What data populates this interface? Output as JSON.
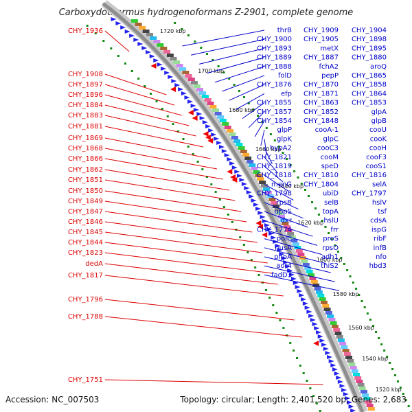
{
  "title": "Carboxydothermus hydrogenoformans Z-2901, complete genome",
  "footer": {
    "accession": "Accession: NC_007503",
    "summary": "Topology: circular; Length: 2,401,520 bp; Genes: 2,683"
  },
  "colors": {
    "left_label": "#dd0000",
    "right_label": "#0000cc",
    "feature_arrow": "#2222ee",
    "backbone": "#9a9a9a",
    "gc_dots": "#118811",
    "tick_marker": "#ee0000"
  },
  "ruler": [
    "1720 kbp",
    "1700 kbp",
    "1680 kbp",
    "1660 kbp",
    "1640 kbp",
    "1620 kbp",
    "1600 kbp",
    "1580 kbp",
    "1560 kbp",
    "1540 kbp",
    "1520 kbp"
  ],
  "left_labels": [
    "CHY_1936",
    "CHY_1908",
    "CHY_1897",
    "CHY_1896",
    "CHY_1884",
    "CHY_1883",
    "CHY_1881",
    "CHY_1869",
    "CHY_1868",
    "CHY_1866",
    "CHY_1862",
    "CHY_1851",
    "CHY_1850",
    "CHY_1849",
    "CHY_1847",
    "CHY_1846",
    "CHY_1845",
    "CHY_1844",
    "CHY_1823",
    "dedA",
    "CHY_1817",
    "CHY_1796",
    "CHY_1788",
    "CHY_1751"
  ],
  "right_labels": [
    "thrB",
    "CHY_1909",
    "CHY_1904",
    "CHY_1900",
    "CHY_1905",
    "CHY_1898",
    "CHY_1893",
    "metX",
    "CHY_1895",
    "CHY_1889",
    "CHY_1887",
    "CHY_1880",
    "CHY_1888",
    "fchA2",
    "aroQ",
    "folD",
    "pepP",
    "CHY_1865",
    "CHY_1876",
    "CHY_1870",
    "CHY_1858",
    "efp",
    "CHY_1871",
    "CHY_1864",
    "CHY_1855",
    "CHY_1863",
    "CHY_1853",
    "CHY_1857",
    "CHY_1852",
    "glpA",
    "CHY_1854",
    "CHY_1848",
    "glpB",
    "glpP",
    "cooA-1",
    "cooU",
    "glpK",
    "glpC",
    "cooK",
    "hypA2",
    "cooC3",
    "cooH",
    "CHY_1821",
    "cooM",
    "cooF3",
    "CHY_1819",
    "speD",
    "cooS1",
    "CHY_1818",
    "CHY_1810",
    "CHY_1816",
    "menG",
    "CHY_1804",
    "selA",
    "CHY_1798",
    "ubiD",
    "CHY_1797",
    "rpsB",
    "selB",
    "hslV",
    "uppS",
    "topA",
    "tsf",
    "dxr",
    "hslU",
    "cdsA",
    "CHY_1774",
    "frr",
    "ispG",
    "polC",
    "proS",
    "ribF",
    "nusA",
    "rpsO",
    "infB",
    "pnpA",
    "adh1",
    "nfo",
    "aor4",
    "thiS2",
    "hbd3",
    "fadD3"
  ]
}
